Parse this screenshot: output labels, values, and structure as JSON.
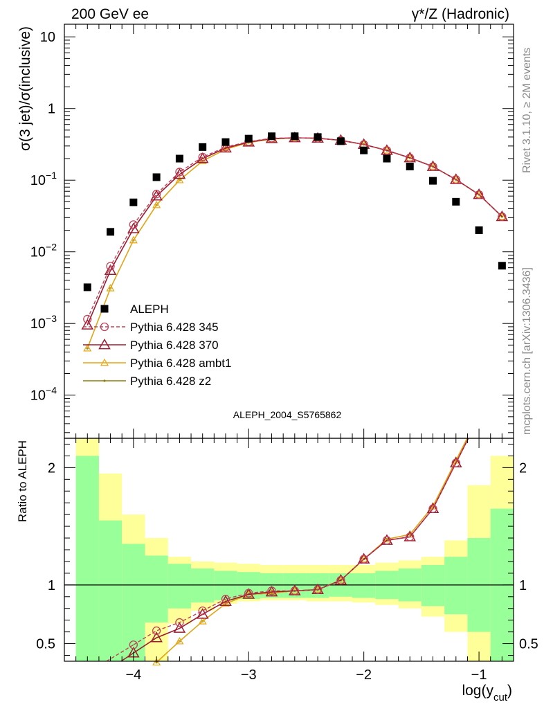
{
  "header": {
    "left": "200 GeV ee",
    "right_base": "γ*/Z",
    "right_suffix": " (Hadronic)"
  },
  "side_text": {
    "rivet": "Rivet 3.1.10, ≥ 2M events",
    "mcplots": "mcplots.cern.ch [arXiv:1306.3436]"
  },
  "analysis_label": "ALEPH_2004_S5765862",
  "colors": {
    "data": "#000000",
    "p345": "#c0415a",
    "p370": "#9b1b30",
    "ambt1": "#e8a60f",
    "z2": "#8a7d0b",
    "band_inner": "#99ff99",
    "band_outer": "#ffff99"
  },
  "chart_data": [
    {
      "type": "scatter",
      "title": "",
      "ylabel": "σ(3 jet)/σ(inclusive)",
      "xlabel": "",
      "yscale": "log",
      "xlim": [
        -4.6,
        -0.7
      ],
      "ylim": [
        2.5e-05,
        15
      ],
      "yticks_labels": [
        "10",
        "1",
        "10^-1",
        "10^-2",
        "10^-3",
        "10^-4"
      ],
      "legend_position": "lower-left",
      "x": [
        -4.4,
        -4.2,
        -4.0,
        -3.8,
        -3.6,
        -3.4,
        -3.2,
        -3.0,
        -2.8,
        -2.6,
        -2.4,
        -2.2,
        -2.0,
        -1.8,
        -1.6,
        -1.4,
        -1.2,
        -1.0,
        -0.8
      ],
      "series": [
        {
          "key": "data",
          "name": "ALEPH",
          "style": "square",
          "values": [
            0.0032,
            0.019,
            0.049,
            0.11,
            0.2,
            0.29,
            0.34,
            0.38,
            0.41,
            0.41,
            0.4,
            0.35,
            0.26,
            0.2,
            0.155,
            0.098,
            0.05,
            0.02,
            0.0064
          ]
        },
        {
          "key": "p345",
          "name": "Pythia 6.428 345",
          "style": "circle-dashed",
          "values": [
            0.00115,
            0.0063,
            0.024,
            0.064,
            0.13,
            0.21,
            0.29,
            0.345,
            0.385,
            0.39,
            0.385,
            0.36,
            0.315,
            0.26,
            0.205,
            0.155,
            0.102,
            0.063,
            0.031
          ]
        },
        {
          "key": "p370",
          "name": "Pythia 6.428 370",
          "style": "triangle-open",
          "values": [
            0.00095,
            0.0055,
            0.021,
            0.06,
            0.12,
            0.2,
            0.28,
            0.34,
            0.38,
            0.39,
            0.385,
            0.36,
            0.315,
            0.26,
            0.205,
            0.155,
            0.102,
            0.063,
            0.031
          ]
        },
        {
          "key": "ambt1",
          "name": "Pythia 6.428 ambt1",
          "style": "triangle-small",
          "values": [
            0.00045,
            0.0031,
            0.0145,
            0.045,
            0.1,
            0.185,
            0.27,
            0.335,
            0.375,
            0.39,
            0.385,
            0.36,
            0.315,
            0.26,
            0.205,
            0.155,
            0.102,
            0.063,
            0.031
          ]
        },
        {
          "key": "z2",
          "name": "Pythia 6.428 z2",
          "style": "dot",
          "values": [
            0.00045,
            0.0031,
            0.0145,
            0.045,
            0.1,
            0.185,
            0.27,
            0.335,
            0.375,
            0.39,
            0.385,
            0.36,
            0.315,
            0.26,
            0.205,
            0.155,
            0.102,
            0.063,
            0.031
          ]
        }
      ]
    },
    {
      "type": "line",
      "title": "",
      "ylabel": "Ratio to ALEPH",
      "xlabel": "log(y_cut)",
      "xlim": [
        -4.6,
        -0.7
      ],
      "ylim": [
        0.35,
        2.25
      ],
      "xticks": [
        "−4",
        "−3",
        "−2",
        "−1"
      ],
      "yticks": [
        "0.5",
        "1",
        "2"
      ],
      "band_edges": [
        -4.5,
        -4.3,
        -4.1,
        -3.9,
        -3.7,
        -3.5,
        -3.3,
        -3.1,
        -2.9,
        -2.7,
        -2.5,
        -2.3,
        -2.1,
        -1.9,
        -1.7,
        -1.5,
        -1.3,
        -1.1,
        -0.9,
        -0.7
      ],
      "band_inner_lo": [
        0.35,
        0.35,
        0.35,
        0.68,
        0.8,
        0.85,
        0.87,
        0.88,
        0.89,
        0.89,
        0.89,
        0.9,
        0.89,
        0.88,
        0.86,
        0.82,
        0.75,
        0.6,
        0.35
      ],
      "band_inner_hi": [
        2.1,
        1.55,
        1.35,
        1.25,
        1.18,
        1.14,
        1.12,
        1.11,
        1.1,
        1.1,
        1.1,
        1.1,
        1.1,
        1.12,
        1.14,
        1.17,
        1.24,
        1.4,
        1.65
      ],
      "band_outer_lo": [
        0.35,
        0.35,
        0.35,
        0.35,
        0.67,
        0.78,
        0.84,
        0.86,
        0.87,
        0.87,
        0.86,
        0.86,
        0.85,
        0.83,
        0.8,
        0.73,
        0.6,
        0.35,
        0.35
      ],
      "band_outer_hi": [
        2.25,
        1.95,
        1.6,
        1.4,
        1.24,
        1.2,
        1.19,
        1.18,
        1.17,
        1.17,
        1.17,
        1.17,
        1.17,
        1.19,
        1.21,
        1.24,
        1.38,
        1.85,
        2.1
      ],
      "x": [
        -4.4,
        -4.2,
        -4.0,
        -3.8,
        -3.6,
        -3.4,
        -3.2,
        -3.0,
        -2.8,
        -2.6,
        -2.4,
        -2.2,
        -2.0,
        -1.8,
        -1.6,
        -1.4,
        -1.2,
        -1.0,
        -0.8
      ],
      "series": [
        {
          "key": "p345",
          "name": "Pythia 6.428 345",
          "values": [
            null,
            null,
            0.49,
            0.61,
            0.68,
            0.78,
            0.88,
            0.93,
            0.95,
            0.95,
            0.96,
            1.04,
            1.22,
            1.38,
            1.41,
            1.65,
            2.04,
            null,
            null
          ]
        },
        {
          "key": "p370",
          "name": "Pythia 6.428 370",
          "values": [
            null,
            null,
            0.42,
            0.55,
            0.63,
            0.75,
            0.86,
            0.92,
            0.94,
            0.95,
            0.96,
            1.04,
            1.22,
            1.38,
            1.41,
            1.65,
            2.04,
            null,
            null
          ]
        },
        {
          "key": "ambt1",
          "name": "Pythia 6.428 ambt1",
          "values": [
            null,
            null,
            null,
            0.34,
            0.52,
            0.69,
            0.84,
            0.92,
            0.93,
            0.95,
            0.96,
            1.04,
            1.22,
            1.39,
            1.43,
            1.67,
            2.06,
            null,
            null
          ]
        },
        {
          "key": "z2",
          "name": "Pythia 6.428 z2",
          "values": [
            null,
            null,
            null,
            0.34,
            0.52,
            0.69,
            0.84,
            0.92,
            0.93,
            0.95,
            0.96,
            1.04,
            1.22,
            1.39,
            1.43,
            1.67,
            2.06,
            null,
            null
          ]
        }
      ]
    }
  ]
}
